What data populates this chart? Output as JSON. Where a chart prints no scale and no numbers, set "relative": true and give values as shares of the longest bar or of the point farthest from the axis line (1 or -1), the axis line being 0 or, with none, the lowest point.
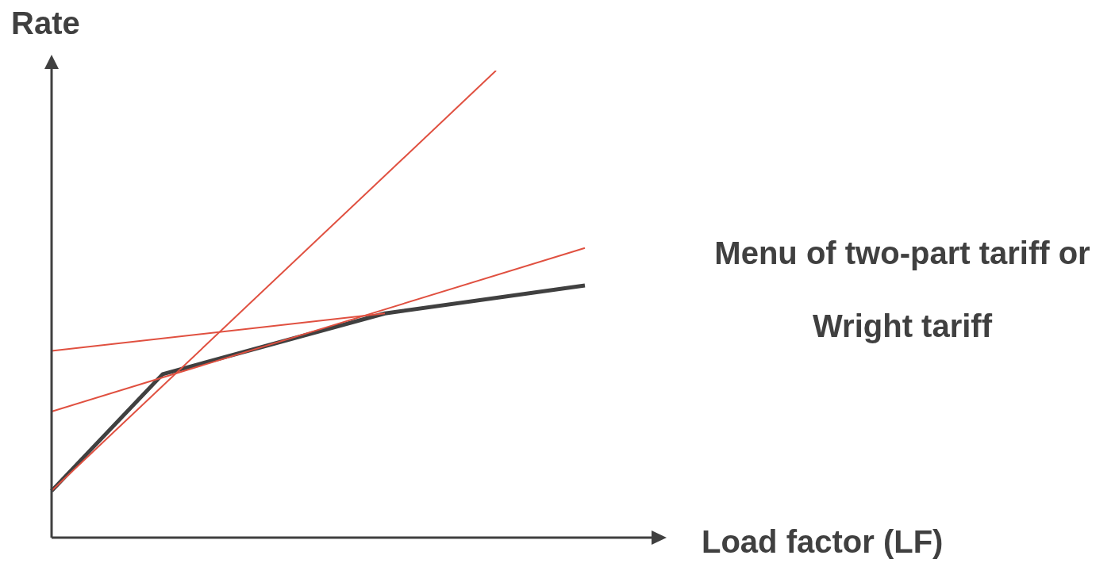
{
  "chart_data": {
    "type": "line",
    "relative": true,
    "xlabel": "Load factor (LF)",
    "ylabel": "Rate",
    "marker": "none",
    "annotations": [
      "Menu of two-part tariff or Wright tariff"
    ],
    "categories": [
      null,
      null,
      null,
      null,
      null,
      null,
      null,
      null,
      null,
      null,
      null,
      null,
      null,
      null,
      null,
      null,
      null,
      null,
      null,
      null,
      null,
      null,
      null,
      null,
      null,
      null,
      null,
      null,
      null,
      null,
      null,
      null,
      null,
      null,
      null,
      null,
      null,
      null,
      null,
      null,
      null,
      null,
      null,
      null,
      null,
      null,
      null,
      null,
      null,
      null,
      null,
      null,
      null,
      null,
      null,
      null
    ],
    "series": [
      {
        "color": "#e05040",
        "values": [
          0.1,
          null,
          null,
          null,
          null,
          null,
          null,
          null,
          null,
          null,
          null,
          null,
          null,
          null,
          null,
          null,
          null,
          null,
          null,
          null,
          null,
          null,
          null,
          null,
          null,
          null,
          null,
          null,
          null,
          null,
          null,
          null,
          null,
          null,
          null,
          null,
          null,
          null,
          null,
          null,
          1.0,
          null,
          null,
          null,
          null,
          null,
          null,
          null,
          null,
          null,
          null,
          null,
          null,
          null,
          null,
          null
        ]
      },
      {
        "color": "#e05040",
        "values": [
          0.27,
          null,
          null,
          null,
          null,
          null,
          null,
          null,
          null,
          null,
          null,
          null,
          null,
          null,
          null,
          null,
          null,
          null,
          null,
          null,
          null,
          null,
          null,
          null,
          null,
          null,
          null,
          null,
          null,
          null,
          null,
          null,
          null,
          null,
          null,
          null,
          null,
          null,
          null,
          null,
          null,
          null,
          null,
          null,
          null,
          null,
          null,
          null,
          0.62,
          null,
          null,
          null,
          null,
          null,
          null,
          null
        ]
      },
      {
        "color": "#e05040",
        "values": [
          0.4,
          null,
          null,
          null,
          null,
          null,
          null,
          null,
          null,
          null,
          null,
          null,
          null,
          null,
          null,
          null,
          null,
          null,
          null,
          null,
          null,
          null,
          null,
          null,
          null,
          null,
          null,
          null,
          null,
          null,
          0.48,
          null,
          null,
          null,
          null,
          null,
          null,
          null,
          null,
          null,
          null,
          null,
          null,
          null,
          null,
          null,
          null,
          null,
          null,
          null,
          null,
          null,
          null,
          null,
          null,
          null
        ]
      },
      {
        "color": "#404040",
        "values": [
          0.1,
          null,
          null,
          null,
          null,
          null,
          null,
          null,
          null,
          null,
          0.35,
          null,
          null,
          null,
          null,
          null,
          null,
          null,
          null,
          null,
          null,
          null,
          null,
          null,
          null,
          null,
          null,
          null,
          null,
          null,
          0.48,
          null,
          null,
          null,
          null,
          null,
          null,
          null,
          null,
          null,
          null,
          null,
          null,
          null,
          null,
          null,
          null,
          null,
          0.54,
          null,
          null,
          null,
          null,
          null,
          null,
          null
        ]
      }
    ]
  }
}
